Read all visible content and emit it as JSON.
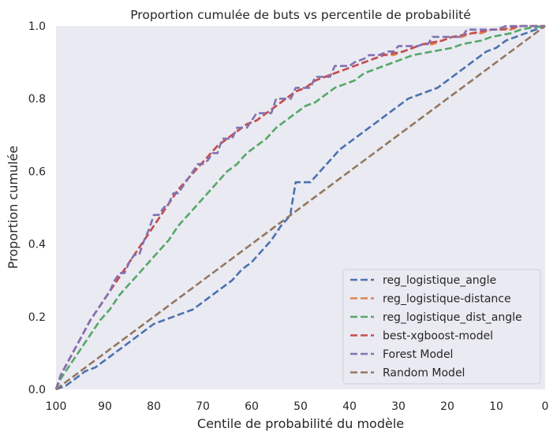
{
  "chart_data": {
    "type": "line",
    "title": "Proportion cumulée de buts vs percentile de probabilité",
    "xlabel": "Centile de probabilité du modèle",
    "ylabel": "Proportion cumulée",
    "xlim": [
      100,
      0
    ],
    "ylim": [
      0,
      1
    ],
    "x_ticks": [
      "100",
      "90",
      "80",
      "70",
      "60",
      "50",
      "40",
      "30",
      "20",
      "10",
      "0"
    ],
    "y_ticks": [
      "0.0",
      "0.2",
      "0.4",
      "0.6",
      "0.8",
      "1.0"
    ],
    "x_tick_values": [
      100,
      90,
      80,
      70,
      60,
      50,
      40,
      30,
      20,
      10,
      0
    ],
    "y_tick_values": [
      0,
      0.2,
      0.4,
      0.6,
      0.8,
      1.0
    ],
    "grid": false,
    "legend_position": "lower right",
    "background": "#eaeaf2",
    "series": [
      {
        "name": "reg_logistique_angle",
        "color": "#4c72b0",
        "points": [
          [
            100,
            0
          ],
          [
            98,
            0.01
          ],
          [
            96,
            0.03
          ],
          [
            94,
            0.05
          ],
          [
            92,
            0.06
          ],
          [
            90,
            0.08
          ],
          [
            88,
            0.1
          ],
          [
            86,
            0.12
          ],
          [
            84,
            0.14
          ],
          [
            82,
            0.16
          ],
          [
            80,
            0.18
          ],
          [
            78,
            0.19
          ],
          [
            76,
            0.2
          ],
          [
            74,
            0.21
          ],
          [
            72,
            0.22
          ],
          [
            70,
            0.24
          ],
          [
            68,
            0.26
          ],
          [
            66,
            0.28
          ],
          [
            64,
            0.3
          ],
          [
            62,
            0.33
          ],
          [
            60,
            0.35
          ],
          [
            58,
            0.38
          ],
          [
            56,
            0.41
          ],
          [
            54,
            0.45
          ],
          [
            52,
            0.48
          ],
          [
            52,
            0.49
          ],
          [
            51,
            0.57
          ],
          [
            48,
            0.57
          ],
          [
            46,
            0.6
          ],
          [
            44,
            0.63
          ],
          [
            42,
            0.66
          ],
          [
            40,
            0.68
          ],
          [
            38,
            0.7
          ],
          [
            36,
            0.72
          ],
          [
            34,
            0.74
          ],
          [
            32,
            0.76
          ],
          [
            30,
            0.78
          ],
          [
            28,
            0.8
          ],
          [
            26,
            0.81
          ],
          [
            24,
            0.82
          ],
          [
            22,
            0.83
          ],
          [
            20,
            0.85
          ],
          [
            18,
            0.87
          ],
          [
            16,
            0.89
          ],
          [
            14,
            0.91
          ],
          [
            12,
            0.93
          ],
          [
            10,
            0.94
          ],
          [
            8,
            0.96
          ],
          [
            6,
            0.97
          ],
          [
            4,
            0.98
          ],
          [
            2,
            0.99
          ],
          [
            0,
            1.0
          ]
        ]
      },
      {
        "name": "reg_logistique-distance",
        "color": "#dd8452",
        "points": [
          [
            100,
            0
          ],
          [
            99,
            0.04
          ],
          [
            97,
            0.09
          ],
          [
            95,
            0.14
          ],
          [
            93,
            0.19
          ],
          [
            91,
            0.23
          ],
          [
            89,
            0.27
          ],
          [
            87,
            0.31
          ],
          [
            85,
            0.35
          ],
          [
            83,
            0.39
          ],
          [
            81,
            0.43
          ],
          [
            79,
            0.47
          ],
          [
            77,
            0.51
          ],
          [
            75,
            0.55
          ],
          [
            73,
            0.58
          ],
          [
            71,
            0.61
          ],
          [
            69,
            0.64
          ],
          [
            67,
            0.67
          ],
          [
            65,
            0.69
          ],
          [
            63,
            0.71
          ],
          [
            61,
            0.73
          ],
          [
            59,
            0.74
          ],
          [
            57,
            0.76
          ],
          [
            55,
            0.78
          ],
          [
            53,
            0.8
          ],
          [
            51,
            0.82
          ],
          [
            49,
            0.83
          ],
          [
            47,
            0.85
          ],
          [
            45,
            0.86
          ],
          [
            43,
            0.87
          ],
          [
            41,
            0.88
          ],
          [
            39,
            0.89
          ],
          [
            37,
            0.9
          ],
          [
            35,
            0.91
          ],
          [
            33,
            0.92
          ],
          [
            31,
            0.92
          ],
          [
            29,
            0.93
          ],
          [
            27,
            0.94
          ],
          [
            25,
            0.95
          ],
          [
            23,
            0.95
          ],
          [
            21,
            0.96
          ],
          [
            19,
            0.97
          ],
          [
            17,
            0.97
          ],
          [
            15,
            0.98
          ],
          [
            13,
            0.98
          ],
          [
            11,
            0.99
          ],
          [
            9,
            0.99
          ],
          [
            7,
            0.99
          ],
          [
            5,
            1.0
          ],
          [
            3,
            1.0
          ],
          [
            0,
            1.0
          ]
        ]
      },
      {
        "name": "reg_logistique_dist_angle",
        "color": "#55a868",
        "points": [
          [
            100,
            0
          ],
          [
            99,
            0.03
          ],
          [
            97,
            0.07
          ],
          [
            95,
            0.11
          ],
          [
            93,
            0.15
          ],
          [
            91,
            0.19
          ],
          [
            89,
            0.22
          ],
          [
            87,
            0.26
          ],
          [
            85,
            0.29
          ],
          [
            83,
            0.32
          ],
          [
            81,
            0.35
          ],
          [
            79,
            0.38
          ],
          [
            77,
            0.41
          ],
          [
            75,
            0.45
          ],
          [
            73,
            0.48
          ],
          [
            71,
            0.51
          ],
          [
            69,
            0.54
          ],
          [
            67,
            0.57
          ],
          [
            65,
            0.6
          ],
          [
            63,
            0.62
          ],
          [
            61,
            0.65
          ],
          [
            59,
            0.67
          ],
          [
            57,
            0.69
          ],
          [
            55,
            0.72
          ],
          [
            53,
            0.74
          ],
          [
            51,
            0.76
          ],
          [
            49,
            0.78
          ],
          [
            47,
            0.79
          ],
          [
            45,
            0.81
          ],
          [
            43,
            0.83
          ],
          [
            41,
            0.84
          ],
          [
            39,
            0.85
          ],
          [
            37,
            0.87
          ],
          [
            35,
            0.88
          ],
          [
            33,
            0.89
          ],
          [
            31,
            0.9
          ],
          [
            29,
            0.91
          ],
          [
            27,
            0.92
          ],
          [
            25,
            0.925
          ],
          [
            23,
            0.93
          ],
          [
            21,
            0.935
          ],
          [
            19,
            0.94
          ],
          [
            17,
            0.95
          ],
          [
            15,
            0.955
          ],
          [
            13,
            0.96
          ],
          [
            11,
            0.97
          ],
          [
            9,
            0.975
          ],
          [
            7,
            0.98
          ],
          [
            5,
            0.99
          ],
          [
            3,
            0.995
          ],
          [
            0,
            1.0
          ]
        ]
      },
      {
        "name": "best-xgboost-model",
        "color": "#c44e52",
        "points": [
          [
            100,
            0
          ],
          [
            99,
            0.04
          ],
          [
            97,
            0.09
          ],
          [
            95,
            0.14
          ],
          [
            93,
            0.19
          ],
          [
            91,
            0.23
          ],
          [
            89,
            0.27
          ],
          [
            87,
            0.31
          ],
          [
            85,
            0.35
          ],
          [
            83,
            0.39
          ],
          [
            81,
            0.43
          ],
          [
            79,
            0.47
          ],
          [
            77,
            0.51
          ],
          [
            75,
            0.55
          ],
          [
            73,
            0.58
          ],
          [
            71,
            0.61
          ],
          [
            69,
            0.64
          ],
          [
            67,
            0.67
          ],
          [
            65,
            0.69
          ],
          [
            63,
            0.71
          ],
          [
            61,
            0.73
          ],
          [
            59,
            0.74
          ],
          [
            57,
            0.76
          ],
          [
            55,
            0.78
          ],
          [
            53,
            0.8
          ],
          [
            51,
            0.82
          ],
          [
            49,
            0.83
          ],
          [
            47,
            0.85
          ],
          [
            45,
            0.86
          ],
          [
            43,
            0.87
          ],
          [
            41,
            0.88
          ],
          [
            39,
            0.89
          ],
          [
            37,
            0.9
          ],
          [
            35,
            0.91
          ],
          [
            33,
            0.92
          ],
          [
            31,
            0.925
          ],
          [
            29,
            0.93
          ],
          [
            27,
            0.94
          ],
          [
            25,
            0.95
          ],
          [
            23,
            0.955
          ],
          [
            21,
            0.96
          ],
          [
            19,
            0.97
          ],
          [
            17,
            0.975
          ],
          [
            15,
            0.98
          ],
          [
            13,
            0.985
          ],
          [
            11,
            0.99
          ],
          [
            9,
            0.99
          ],
          [
            7,
            0.995
          ],
          [
            5,
            1.0
          ],
          [
            3,
            1.0
          ],
          [
            0,
            1.0
          ]
        ]
      },
      {
        "name": "Forest Model",
        "color": "#8172b3",
        "points": [
          [
            100,
            0
          ],
          [
            99,
            0.04
          ],
          [
            97,
            0.09
          ],
          [
            95,
            0.14
          ],
          [
            93,
            0.19
          ],
          [
            91,
            0.23
          ],
          [
            89,
            0.27
          ],
          [
            88,
            0.3
          ],
          [
            87,
            0.32
          ],
          [
            86,
            0.32
          ],
          [
            85,
            0.35
          ],
          [
            84,
            0.37
          ],
          [
            83,
            0.37
          ],
          [
            82,
            0.41
          ],
          [
            81,
            0.44
          ],
          [
            80,
            0.48
          ],
          [
            79,
            0.48
          ],
          [
            78,
            0.5
          ],
          [
            77,
            0.51
          ],
          [
            76,
            0.54
          ],
          [
            75,
            0.54
          ],
          [
            74,
            0.56
          ],
          [
            73,
            0.58
          ],
          [
            72,
            0.6
          ],
          [
            71,
            0.62
          ],
          [
            70,
            0.62
          ],
          [
            69,
            0.63
          ],
          [
            68,
            0.65
          ],
          [
            67,
            0.65
          ],
          [
            66,
            0.69
          ],
          [
            64,
            0.69
          ],
          [
            63,
            0.72
          ],
          [
            62,
            0.72
          ],
          [
            61,
            0.72
          ],
          [
            60,
            0.74
          ],
          [
            59,
            0.76
          ],
          [
            57,
            0.76
          ],
          [
            56,
            0.76
          ],
          [
            55,
            0.8
          ],
          [
            53,
            0.8
          ],
          [
            52,
            0.8
          ],
          [
            51,
            0.83
          ],
          [
            50,
            0.83
          ],
          [
            49,
            0.83
          ],
          [
            48,
            0.83
          ],
          [
            47,
            0.86
          ],
          [
            45,
            0.86
          ],
          [
            44,
            0.86
          ],
          [
            43,
            0.89
          ],
          [
            41,
            0.89
          ],
          [
            40,
            0.89
          ],
          [
            39,
            0.9
          ],
          [
            37,
            0.91
          ],
          [
            36,
            0.92
          ],
          [
            34,
            0.92
          ],
          [
            32,
            0.93
          ],
          [
            31,
            0.93
          ],
          [
            30,
            0.945
          ],
          [
            28,
            0.945
          ],
          [
            26,
            0.945
          ],
          [
            25,
            0.95
          ],
          [
            24,
            0.95
          ],
          [
            23,
            0.97
          ],
          [
            21,
            0.97
          ],
          [
            20,
            0.97
          ],
          [
            19,
            0.97
          ],
          [
            17,
            0.97
          ],
          [
            16,
            0.99
          ],
          [
            14,
            0.99
          ],
          [
            12,
            0.99
          ],
          [
            10,
            0.99
          ],
          [
            8,
            1.0
          ],
          [
            5,
            1.0
          ],
          [
            0,
            1.0
          ]
        ]
      },
      {
        "name": "Random Model",
        "color": "#937860",
        "points": [
          [
            100,
            0
          ],
          [
            90,
            0.1
          ],
          [
            80,
            0.2
          ],
          [
            70,
            0.3
          ],
          [
            60,
            0.4
          ],
          [
            50,
            0.5
          ],
          [
            40,
            0.6
          ],
          [
            30,
            0.7
          ],
          [
            20,
            0.8
          ],
          [
            10,
            0.9
          ],
          [
            0,
            1.0
          ]
        ]
      }
    ]
  }
}
